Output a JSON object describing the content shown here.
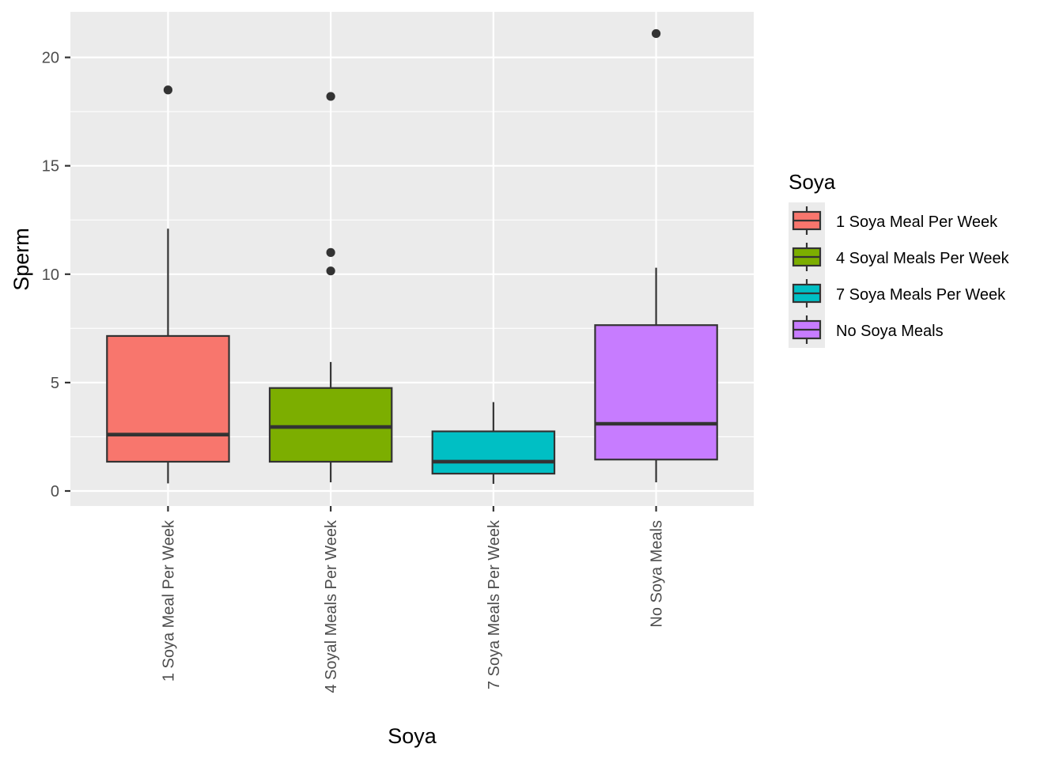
{
  "chart_data": {
    "type": "boxplot",
    "title": "",
    "xlabel": "Soya",
    "ylabel": "Sperm",
    "ylim": [
      -0.8,
      22.5
    ],
    "yticks": [
      0,
      5,
      10,
      15,
      20
    ],
    "ytick_labels": [
      "0",
      "5",
      "10",
      "15",
      "20"
    ],
    "categories": [
      "1 Soya Meal Per Week",
      "4 Soyal Meals Per Week",
      "7 Soya Meals Per Week",
      "No Soya Meals"
    ],
    "colors": [
      "#F8766D",
      "#7CAE00",
      "#00BFC4",
      "#C77CFF"
    ],
    "boxes": [
      {
        "category": "1 Soya Meal Per Week",
        "lower_whisker": 0.35,
        "q1": 1.35,
        "median": 2.6,
        "q3": 7.15,
        "upper_whisker": 12.1,
        "outliers": [
          18.5
        ]
      },
      {
        "category": "4 Soyal Meals Per Week",
        "lower_whisker": 0.4,
        "q1": 1.35,
        "median": 2.95,
        "q3": 4.75,
        "upper_whisker": 5.95,
        "outliers": [
          18.2,
          11.0,
          10.15
        ]
      },
      {
        "category": "7 Soya Meals Per Week",
        "lower_whisker": 0.33,
        "q1": 0.8,
        "median": 1.35,
        "q3": 2.75,
        "upper_whisker": 4.1,
        "outliers": []
      },
      {
        "category": "No Soya Meals",
        "lower_whisker": 0.4,
        "q1": 1.45,
        "median": 3.1,
        "q3": 7.65,
        "upper_whisker": 10.3,
        "outliers": [
          21.1
        ]
      }
    ],
    "legend": {
      "title": "Soya",
      "position": "right",
      "entries": [
        "1 Soya Meal Per Week",
        "4 Soyal Meals Per Week",
        "7 Soya Meals Per Week",
        "No Soya Meals"
      ]
    }
  }
}
